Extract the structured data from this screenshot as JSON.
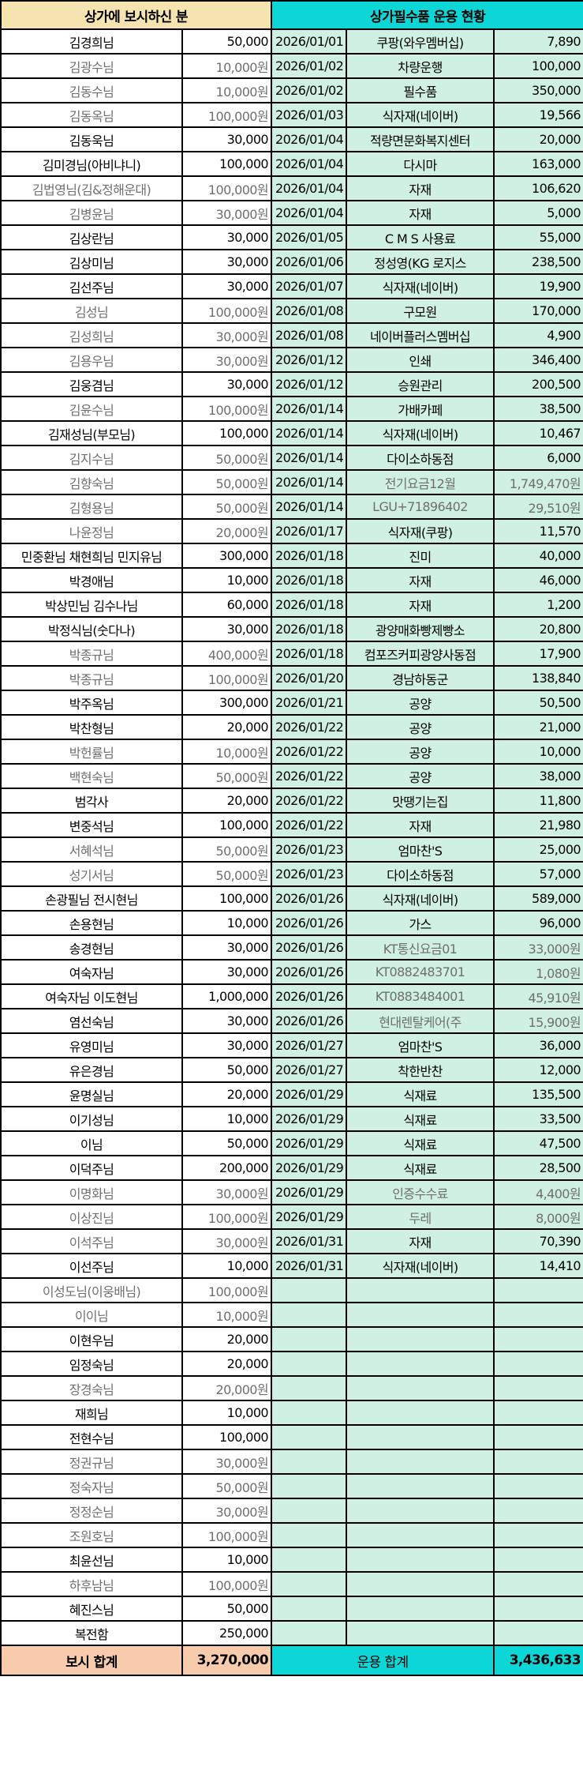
{
  "colors": {
    "donation_header": "#f6e4b0",
    "expense_header": "#0dd6d6",
    "expense_cells": "#cff0e2",
    "donation_total": "#f8cbad",
    "muted_text": "#6f6f6f"
  },
  "header": {
    "donations_title": "상가에 보시하신 분",
    "expenses_title": "상가필수품 운용 현황"
  },
  "donations": [
    {
      "name": "김경희님",
      "amount": "50,000",
      "muted": false
    },
    {
      "name": "김광수님",
      "amount": "10,000원",
      "muted": true
    },
    {
      "name": "김동수님",
      "amount": "10,000원",
      "muted": true
    },
    {
      "name": "김동옥님",
      "amount": "100,000원",
      "muted": true
    },
    {
      "name": "김동욱님",
      "amount": "30,000",
      "muted": false
    },
    {
      "name": "김미경님(아비냐니)",
      "amount": "100,000",
      "muted": false
    },
    {
      "name": "김법영님(김&정해운대)",
      "amount": "100,000원",
      "muted": true
    },
    {
      "name": "김병윤님",
      "amount": "30,000원",
      "muted": true
    },
    {
      "name": "김상란님",
      "amount": "30,000",
      "muted": false
    },
    {
      "name": "김상미님",
      "amount": "30,000",
      "muted": false
    },
    {
      "name": "김선주님",
      "amount": "30,000",
      "muted": false
    },
    {
      "name": "김성님",
      "amount": "100,000원",
      "muted": true
    },
    {
      "name": "김성희님",
      "amount": "30,000원",
      "muted": true
    },
    {
      "name": "김용우님",
      "amount": "30,000원",
      "muted": true
    },
    {
      "name": "김웅겸님",
      "amount": "30,000",
      "muted": false
    },
    {
      "name": "김윤수님",
      "amount": "100,000원",
      "muted": true
    },
    {
      "name": "김재성님(부모님)",
      "amount": "100,000",
      "muted": false
    },
    {
      "name": "김지수님",
      "amount": "50,000원",
      "muted": true
    },
    {
      "name": "김향숙님",
      "amount": "50,000원",
      "muted": true
    },
    {
      "name": "김형용님",
      "amount": "50,000원",
      "muted": true
    },
    {
      "name": "나윤정님",
      "amount": "20,000원",
      "muted": true
    },
    {
      "name": "민중환님 채현희님 민지유님",
      "amount": "300,000",
      "muted": false
    },
    {
      "name": "박경애님",
      "amount": "10,000",
      "muted": false
    },
    {
      "name": "박상민님 김수나님",
      "amount": "60,000",
      "muted": false
    },
    {
      "name": "박정식님(숫다나)",
      "amount": "30,000",
      "muted": false
    },
    {
      "name": "박종규님",
      "amount": "400,000원",
      "muted": true
    },
    {
      "name": "박종규님",
      "amount": "100,000원",
      "muted": true
    },
    {
      "name": "박주옥님",
      "amount": "300,000",
      "muted": false
    },
    {
      "name": "박찬형님",
      "amount": "20,000",
      "muted": false
    },
    {
      "name": "박헌률님",
      "amount": "10,000원",
      "muted": true
    },
    {
      "name": "백현숙님",
      "amount": "50,000원",
      "muted": true
    },
    {
      "name": "범각사",
      "amount": "20,000",
      "muted": false
    },
    {
      "name": "변중석님",
      "amount": "100,000",
      "muted": false
    },
    {
      "name": "서혜석님",
      "amount": "50,000원",
      "muted": true
    },
    {
      "name": "성기서님",
      "amount": "50,000원",
      "muted": true
    },
    {
      "name": "손광필님 전시현님",
      "amount": "100,000",
      "muted": false
    },
    {
      "name": "손용현님",
      "amount": "10,000",
      "muted": false
    },
    {
      "name": "송경현님",
      "amount": "30,000",
      "muted": false
    },
    {
      "name": "여숙자님",
      "amount": "30,000",
      "muted": false
    },
    {
      "name": "여숙자님 이도현님",
      "amount": "1,000,000",
      "muted": false
    },
    {
      "name": "염선숙님",
      "amount": "30,000",
      "muted": false
    },
    {
      "name": "유영미님",
      "amount": "30,000",
      "muted": false
    },
    {
      "name": "유은경님",
      "amount": "50,000",
      "muted": false
    },
    {
      "name": "윤명실님",
      "amount": "20,000",
      "muted": false
    },
    {
      "name": "이기성님",
      "amount": "10,000",
      "muted": false
    },
    {
      "name": "이님",
      "amount": "50,000",
      "muted": false
    },
    {
      "name": "이덕주님",
      "amount": "200,000",
      "muted": false
    },
    {
      "name": "이명화님",
      "amount": "30,000원",
      "muted": true
    },
    {
      "name": "이상진님",
      "amount": "100,000원",
      "muted": true
    },
    {
      "name": "이석주님",
      "amount": "30,000원",
      "muted": true
    },
    {
      "name": "이선주님",
      "amount": "10,000",
      "muted": false
    },
    {
      "name": "이성도님(이웅배님)",
      "amount": "100,000원",
      "muted": true
    },
    {
      "name": "이이님",
      "amount": "10,000원",
      "muted": true
    },
    {
      "name": "이현우님",
      "amount": "20,000",
      "muted": false
    },
    {
      "name": "임정숙님",
      "amount": "20,000",
      "muted": false
    },
    {
      "name": "장경숙님",
      "amount": "20,000원",
      "muted": true
    },
    {
      "name": "재희님",
      "amount": "10,000",
      "muted": false
    },
    {
      "name": "전현수님",
      "amount": "100,000",
      "muted": false
    },
    {
      "name": "정권규님",
      "amount": "30,000원",
      "muted": true
    },
    {
      "name": "정숙자님",
      "amount": "50,000원",
      "muted": true
    },
    {
      "name": "정정순님",
      "amount": "30,000원",
      "muted": true
    },
    {
      "name": "조원호님",
      "amount": "100,000원",
      "muted": true
    },
    {
      "name": "최윤선님",
      "amount": "10,000",
      "muted": false
    },
    {
      "name": "하후남님",
      "amount": "100,000원",
      "muted": true
    },
    {
      "name": "혜진스님",
      "amount": "50,000",
      "muted": false
    },
    {
      "name": "복전함",
      "amount": "250,000",
      "muted": false
    }
  ],
  "expenses": [
    {
      "date": "2026/01/01",
      "item": "쿠팡(와우멤버십)",
      "amount": "7,890",
      "muted": false
    },
    {
      "date": "2026/01/02",
      "item": "차량운행",
      "amount": "100,000",
      "muted": false
    },
    {
      "date": "2026/01/02",
      "item": "필수품",
      "amount": "350,000",
      "muted": false
    },
    {
      "date": "2026/01/03",
      "item": "식자재(네이버)",
      "amount": "19,566",
      "muted": false
    },
    {
      "date": "2026/01/04",
      "item": "적량면문화복지센터",
      "amount": "20,000",
      "muted": false
    },
    {
      "date": "2026/01/04",
      "item": "다시마",
      "amount": "163,000",
      "muted": false
    },
    {
      "date": "2026/01/04",
      "item": "자재",
      "amount": "106,620",
      "muted": false
    },
    {
      "date": "2026/01/04",
      "item": "자재",
      "amount": "5,000",
      "muted": false
    },
    {
      "date": "2026/01/05",
      "item": "C M S 사용료",
      "amount": "55,000",
      "muted": false
    },
    {
      "date": "2026/01/06",
      "item": "정성영(KG 로지스",
      "amount": "238,500",
      "muted": false
    },
    {
      "date": "2026/01/07",
      "item": "식자재(네이버)",
      "amount": "19,900",
      "muted": false
    },
    {
      "date": "2026/01/08",
      "item": "구모원",
      "amount": "170,000",
      "muted": false
    },
    {
      "date": "2026/01/08",
      "item": "네이버플러스멤버십",
      "amount": "4,900",
      "muted": false
    },
    {
      "date": "2026/01/12",
      "item": "인쇄",
      "amount": "346,400",
      "muted": false
    },
    {
      "date": "2026/01/12",
      "item": "승원관리",
      "amount": "200,500",
      "muted": false
    },
    {
      "date": "2026/01/14",
      "item": "가배카페",
      "amount": "38,500",
      "muted": false
    },
    {
      "date": "2026/01/14",
      "item": "식자재(네이버)",
      "amount": "10,467",
      "muted": false
    },
    {
      "date": "2026/01/14",
      "item": "다이소하동점",
      "amount": "6,000",
      "muted": false
    },
    {
      "date": "2026/01/14",
      "item": "전기요금12월",
      "amount": "1,749,470원",
      "muted": true
    },
    {
      "date": "2026/01/14",
      "item": "LGU+71896402",
      "amount": "29,510원",
      "muted": true
    },
    {
      "date": "2026/01/17",
      "item": "식자재(쿠팡)",
      "amount": "11,570",
      "muted": false
    },
    {
      "date": "2026/01/18",
      "item": "진미",
      "amount": "40,000",
      "muted": false
    },
    {
      "date": "2026/01/18",
      "item": "자재",
      "amount": "46,000",
      "muted": false
    },
    {
      "date": "2026/01/18",
      "item": "자재",
      "amount": "1,200",
      "muted": false
    },
    {
      "date": "2026/01/18",
      "item": "광양매화빵제빵소",
      "amount": "20,800",
      "muted": false
    },
    {
      "date": "2026/01/18",
      "item": "컴포즈커피광양사동점",
      "amount": "17,900",
      "muted": false
    },
    {
      "date": "2026/01/20",
      "item": "경남하동군",
      "amount": "138,840",
      "muted": false
    },
    {
      "date": "2026/01/21",
      "item": "공양",
      "amount": "50,500",
      "muted": false
    },
    {
      "date": "2026/01/22",
      "item": "공양",
      "amount": "21,000",
      "muted": false
    },
    {
      "date": "2026/01/22",
      "item": "공양",
      "amount": "10,000",
      "muted": false
    },
    {
      "date": "2026/01/22",
      "item": "공양",
      "amount": "38,000",
      "muted": false
    },
    {
      "date": "2026/01/22",
      "item": "맛땡기는집",
      "amount": "11,800",
      "muted": false
    },
    {
      "date": "2026/01/22",
      "item": "자재",
      "amount": "21,980",
      "muted": false
    },
    {
      "date": "2026/01/23",
      "item": "엄마찬'S",
      "amount": "25,000",
      "muted": false
    },
    {
      "date": "2026/01/23",
      "item": "다이소하동점",
      "amount": "57,000",
      "muted": false
    },
    {
      "date": "2026/01/26",
      "item": "식자재(네이버)",
      "amount": "589,000",
      "muted": false
    },
    {
      "date": "2026/01/26",
      "item": "가스",
      "amount": "96,000",
      "muted": false
    },
    {
      "date": "2026/01/26",
      "item": "KT통신요금01",
      "amount": "33,000원",
      "muted": true
    },
    {
      "date": "2026/01/26",
      "item": "KT0882483701",
      "amount": "1,080원",
      "muted": true
    },
    {
      "date": "2026/01/26",
      "item": "KT0883484001",
      "amount": "45,910원",
      "muted": true
    },
    {
      "date": "2026/01/26",
      "item": "현대렌탈케어(주",
      "amount": "15,900원",
      "muted": true
    },
    {
      "date": "2026/01/27",
      "item": "엄마찬'S",
      "amount": "36,000",
      "muted": false
    },
    {
      "date": "2026/01/27",
      "item": "착한반찬",
      "amount": "12,000",
      "muted": false
    },
    {
      "date": "2026/01/29",
      "item": "식재료",
      "amount": "135,500",
      "muted": false
    },
    {
      "date": "2026/01/29",
      "item": "식재료",
      "amount": "33,500",
      "muted": false
    },
    {
      "date": "2026/01/29",
      "item": "식재료",
      "amount": "47,500",
      "muted": false
    },
    {
      "date": "2026/01/29",
      "item": "식재료",
      "amount": "28,500",
      "muted": false
    },
    {
      "date": "2026/01/29",
      "item": "인증수수료",
      "amount": "4,400원",
      "muted": true
    },
    {
      "date": "2026/01/29",
      "item": "두레",
      "amount": "8,000원",
      "muted": true
    },
    {
      "date": "2026/01/31",
      "item": "자재",
      "amount": "70,390",
      "muted": false
    },
    {
      "date": "2026/01/31",
      "item": "식자재(네이버)",
      "amount": "14,410",
      "muted": false
    }
  ],
  "footer": {
    "donation_total_label": "보시 합계",
    "donation_total": "3,270,000",
    "expense_total_label": "운용 합계",
    "expense_total": "3,436,633"
  }
}
